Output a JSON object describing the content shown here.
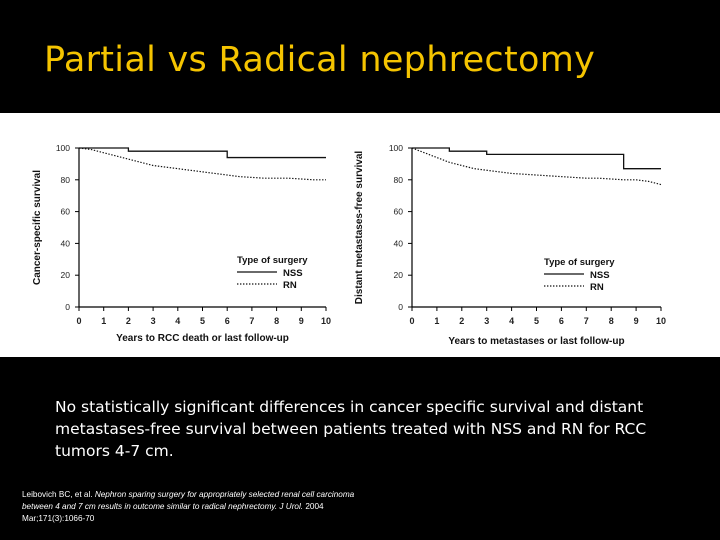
{
  "slide": {
    "title": "Partial vs Radical nephrectomy",
    "summary": "No statistically significant differences in cancer specific survival and distant metastases-free survival between patients treated with NSS and RN for RCC tumors 4-7 cm.",
    "citation": {
      "authors": "Leibovich BC, et al. ",
      "article": "Nephron sparing surgery for appropriately selected renal cell carcinoma between 4 and 7 cm results in outcome similar to radical nephrectomy. J Urol.",
      "source": " 2004 Mar;171(3):1066-70"
    },
    "colors": {
      "background": "#000000",
      "title": "#f5c400",
      "text": "#ffffff"
    }
  },
  "chart_data": [
    {
      "type": "line",
      "title": "",
      "xlabel": "Years to RCC death or last follow-up",
      "ylabel": "Cancer-specific survival",
      "xlim": [
        0,
        10
      ],
      "ylim": [
        0,
        100
      ],
      "xticks": [
        0,
        1,
        2,
        3,
        4,
        5,
        6,
        7,
        8,
        9,
        10
      ],
      "yticks": [
        0,
        20,
        40,
        60,
        80,
        100
      ],
      "legend": {
        "title": "Type of surgery",
        "placement": "center-right"
      },
      "series": [
        {
          "name": "NSS",
          "style": "solid",
          "step": true,
          "x": [
            0,
            2,
            6,
            10
          ],
          "y": [
            100,
            98,
            94,
            94
          ]
        },
        {
          "name": "RN",
          "style": "dotted",
          "step": false,
          "x": [
            0,
            0.5,
            1,
            1.5,
            2,
            2.5,
            3,
            3.5,
            4,
            4.5,
            5,
            5.5,
            6,
            6.5,
            7,
            7.5,
            8,
            8.5,
            9,
            9.5,
            10
          ],
          "y": [
            100,
            99,
            97,
            95,
            93,
            91,
            89,
            88,
            87,
            86,
            85,
            84,
            83,
            82,
            81.5,
            81,
            81,
            81,
            80.5,
            80,
            80
          ]
        }
      ]
    },
    {
      "type": "line",
      "title": "",
      "xlabel": "Years to metastases or last follow-up",
      "ylabel": "Distant metastases-free survival",
      "xlim": [
        0,
        10
      ],
      "ylim": [
        0,
        100
      ],
      "xticks": [
        0,
        1,
        2,
        3,
        4,
        5,
        6,
        7,
        8,
        9,
        10
      ],
      "yticks": [
        0,
        20,
        40,
        60,
        80,
        100
      ],
      "legend": {
        "title": "Type of surgery",
        "placement": "bottom-right"
      },
      "series": [
        {
          "name": "NSS",
          "style": "solid",
          "step": true,
          "x": [
            0,
            1.5,
            3,
            8.5,
            10
          ],
          "y": [
            100,
            98,
            96,
            87,
            87
          ]
        },
        {
          "name": "RN",
          "style": "dotted",
          "step": false,
          "x": [
            0,
            0.5,
            1,
            1.5,
            2,
            2.5,
            3,
            3.5,
            4,
            4.5,
            5,
            5.5,
            6,
            6.5,
            7,
            7.5,
            8,
            8.5,
            9,
            9.5,
            10
          ],
          "y": [
            100,
            97,
            94,
            91,
            89,
            87,
            86,
            85,
            84,
            83.5,
            83,
            82.5,
            82,
            81.5,
            81,
            81,
            80.5,
            80,
            80,
            79,
            77
          ]
        }
      ]
    }
  ]
}
